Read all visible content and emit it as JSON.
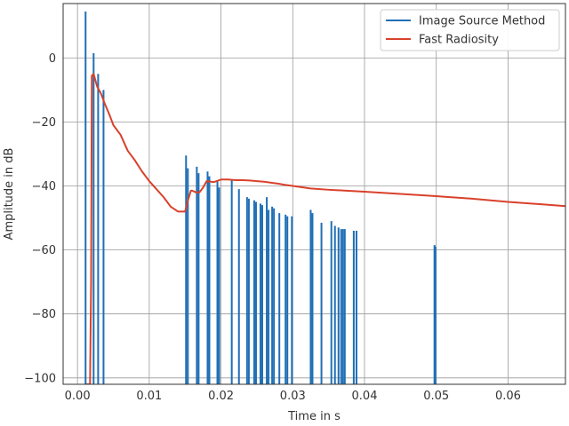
{
  "chart_data": {
    "type": "line",
    "title": "",
    "xlabel": "Time in s",
    "ylabel": "Amplitude in dB",
    "xlim": [
      -0.002,
      0.068
    ],
    "ylim": [
      -102,
      17
    ],
    "grid": true,
    "legend_position": "top-right",
    "xticks": [
      {
        "value": 0.0,
        "label": "0.00"
      },
      {
        "value": 0.01,
        "label": "0.01"
      },
      {
        "value": 0.02,
        "label": "0.02"
      },
      {
        "value": 0.03,
        "label": "0.03"
      },
      {
        "value": 0.04,
        "label": "0.04"
      },
      {
        "value": 0.05,
        "label": "0.05"
      },
      {
        "value": 0.06,
        "label": "0.06"
      }
    ],
    "yticks": [
      {
        "value": 0,
        "label": "0"
      },
      {
        "value": -20,
        "label": "−20"
      },
      {
        "value": -40,
        "label": "−40"
      },
      {
        "value": -60,
        "label": "−60"
      },
      {
        "value": -80,
        "label": "−80"
      },
      {
        "value": -100,
        "label": "−100"
      }
    ],
    "series": [
      {
        "name": "Image Source Method",
        "color": "#1f6fb5",
        "kind": "impulses",
        "impulses": [
          {
            "x": 0.00113,
            "y": 14.5
          },
          {
            "x": 0.00225,
            "y": 1.5
          },
          {
            "x": 0.00288,
            "y": -5
          },
          {
            "x": 0.00363,
            "y": -10
          },
          {
            "x": 0.01513,
            "y": -30.5
          },
          {
            "x": 0.01538,
            "y": -34.5
          },
          {
            "x": 0.01663,
            "y": -34
          },
          {
            "x": 0.01688,
            "y": -36
          },
          {
            "x": 0.01813,
            "y": -35.5
          },
          {
            "x": 0.01838,
            "y": -37
          },
          {
            "x": 0.0195,
            "y": -38.5
          },
          {
            "x": 0.01975,
            "y": -40.5
          },
          {
            "x": 0.0215,
            "y": -38
          },
          {
            "x": 0.0225,
            "y": -41
          },
          {
            "x": 0.02363,
            "y": -43.5
          },
          {
            "x": 0.02388,
            "y": -44
          },
          {
            "x": 0.02463,
            "y": -44.5
          },
          {
            "x": 0.02488,
            "y": -45
          },
          {
            "x": 0.0255,
            "y": -45.5
          },
          {
            "x": 0.02575,
            "y": -46
          },
          {
            "x": 0.02638,
            "y": -43.5
          },
          {
            "x": 0.02663,
            "y": -47.5
          },
          {
            "x": 0.02713,
            "y": -46.5
          },
          {
            "x": 0.02738,
            "y": -47
          },
          {
            "x": 0.02813,
            "y": -48.5
          },
          {
            "x": 0.029,
            "y": -49
          },
          {
            "x": 0.02925,
            "y": -49.5
          },
          {
            "x": 0.02988,
            "y": -49.5
          },
          {
            "x": 0.0325,
            "y": -47.5
          },
          {
            "x": 0.03275,
            "y": -48.5
          },
          {
            "x": 0.034,
            "y": -51.5
          },
          {
            "x": 0.03538,
            "y": -51
          },
          {
            "x": 0.03588,
            "y": -52.5
          },
          {
            "x": 0.03638,
            "y": -53
          },
          {
            "x": 0.03675,
            "y": -53.5
          },
          {
            "x": 0.037,
            "y": -53.5
          },
          {
            "x": 0.03725,
            "y": -53.5
          },
          {
            "x": 0.0385,
            "y": -54
          },
          {
            "x": 0.03888,
            "y": -54
          },
          {
            "x": 0.04975,
            "y": -58.5
          },
          {
            "x": 0.04988,
            "y": -59
          }
        ]
      },
      {
        "name": "Fast Radiosity",
        "color": "#d9412b",
        "kind": "line",
        "x": [
          0.00125,
          0.0015,
          0.00175,
          0.0019,
          0.002,
          0.00225,
          0.00275,
          0.00325,
          0.00375,
          0.0045,
          0.005,
          0.006,
          0.007,
          0.008,
          0.009,
          0.01,
          0.011,
          0.012,
          0.013,
          0.014,
          0.015,
          0.0154,
          0.0158,
          0.016,
          0.0165,
          0.017,
          0.0175,
          0.018,
          0.019,
          0.02,
          0.021,
          0.022,
          0.023,
          0.024,
          0.025,
          0.026,
          0.027,
          0.028,
          0.029,
          0.03,
          0.0325,
          0.035,
          0.0375,
          0.04,
          0.045,
          0.05,
          0.055,
          0.06,
          0.065,
          0.068
        ],
        "y": [
          -102,
          -102,
          -102,
          -70,
          -5.5,
          -5,
          -9,
          -11,
          -14,
          -18,
          -21,
          -24,
          -29,
          -32,
          -35.5,
          -38.5,
          -41,
          -43.5,
          -46.5,
          -48,
          -48,
          -44.5,
          -41.5,
          -41.5,
          -42,
          -42,
          -40.5,
          -38.5,
          -38.8,
          -38,
          -38,
          -38.2,
          -38.2,
          -38.3,
          -38.5,
          -38.7,
          -39,
          -39.3,
          -39.7,
          -40,
          -40.8,
          -41.2,
          -41.5,
          -41.8,
          -42.5,
          -43.2,
          -44,
          -45,
          -45.8,
          -46.3
        ]
      }
    ]
  }
}
